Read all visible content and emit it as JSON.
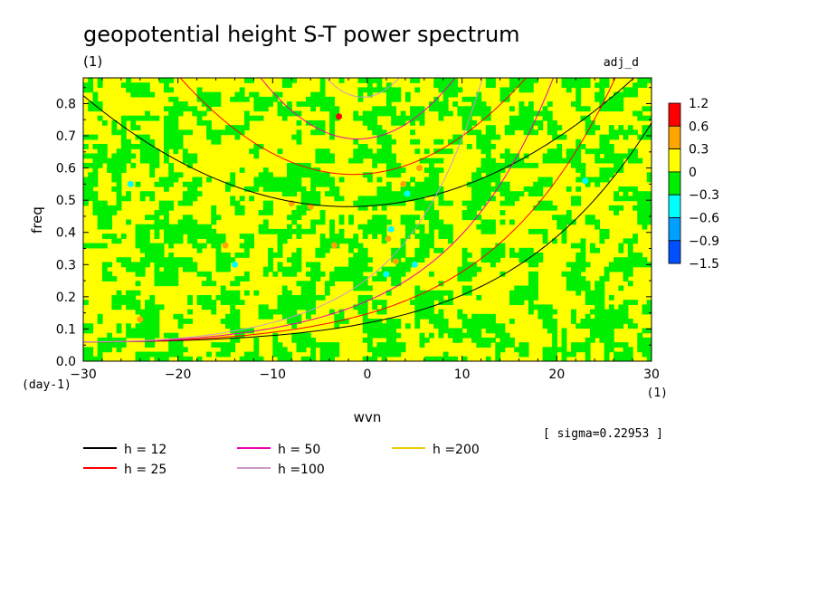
{
  "chart_data": {
    "type": "heatmap",
    "title": "geopotential height S-T power spectrum",
    "subtitle_left": "(1)",
    "subtitle_right": "adj_d",
    "xlabel": "wvn",
    "ylabel": "freq",
    "x_unit": "(1)",
    "y_unit": "(day-1)",
    "xlim": [
      -30,
      30
    ],
    "ylim": [
      0,
      0.88
    ],
    "x_ticks": [
      -30,
      -20,
      -10,
      0,
      10,
      20,
      30
    ],
    "y_ticks": [
      0.0,
      0.1,
      0.2,
      0.3,
      0.4,
      0.5,
      0.6,
      0.7,
      0.8
    ],
    "x_tick_labels": [
      "−30",
      "−20",
      "−10",
      "0",
      "10",
      "20",
      "30"
    ],
    "y_tick_labels": [
      "0.0",
      "0.1",
      "0.2",
      "0.3",
      "0.4",
      "0.5",
      "0.6",
      "0.7",
      "0.8"
    ],
    "colorbar": {
      "labels": [
        "1.2",
        "0.6",
        "0.3",
        "0",
        "−0.3",
        "−0.6",
        "−0.9",
        "−1.5"
      ],
      "levels": [
        1.2,
        0.6,
        0.3,
        0,
        -0.3,
        -0.6,
        -0.9,
        -1.5
      ],
      "colors": [
        "#ff0000",
        "#ffa500",
        "#ffff00",
        "#00ee00",
        "#00ffff",
        "#00a0ff",
        "#0050ff"
      ]
    },
    "field_colors": {
      "yellow": "#ffff00",
      "green": "#00ee00",
      "orange": "#ffa500",
      "red": "#ff0000",
      "cyan": "#00ffff",
      "blue": "#00a0ff"
    },
    "series": [
      {
        "name": "h = 12",
        "color": "#000000"
      },
      {
        "name": "h = 25",
        "color": "#ff0000"
      },
      {
        "name": "h = 50",
        "color": "#ee00aa"
      },
      {
        "name": "h =100",
        "color": "#cc99cc"
      },
      {
        "name": "h =200",
        "color": "#eecc00"
      }
    ],
    "sigma_label": "[ sigma=0.22953 ]",
    "grid": false,
    "legend_placement": "bottom"
  }
}
